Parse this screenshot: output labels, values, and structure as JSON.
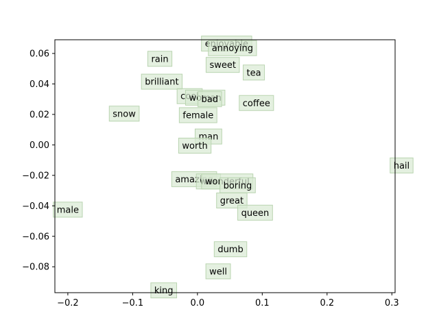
{
  "chart_data": {
    "type": "scatter",
    "title": "",
    "xlabel": "",
    "ylabel": "",
    "xlim": [
      -0.22,
      0.305
    ],
    "ylim": [
      -0.097,
      0.069
    ],
    "xticks": [
      -0.2,
      -0.1,
      0.0,
      0.1,
      0.2,
      0.3
    ],
    "yticks": [
      -0.08,
      -0.06,
      -0.04,
      -0.02,
      0.0,
      0.02,
      0.04,
      0.06
    ],
    "xtick_labels": [
      "−0.2",
      "−0.1",
      "0.0",
      "0.1",
      "0.2",
      "0.3"
    ],
    "ytick_labels": [
      "−0.08",
      "−0.06",
      "−0.04",
      "−0.02",
      "0.00",
      "0.02",
      "0.04",
      "0.06"
    ],
    "grid": false,
    "points": [
      {
        "label": "enjoyable",
        "x": 0.045,
        "y": 0.0665
      },
      {
        "label": "annoying",
        "x": 0.054,
        "y": 0.0635
      },
      {
        "label": "rain",
        "x": -0.058,
        "y": 0.0565
      },
      {
        "label": "sweet",
        "x": 0.039,
        "y": 0.0525
      },
      {
        "label": "tea",
        "x": 0.087,
        "y": 0.0475
      },
      {
        "label": "brilliant",
        "x": -0.055,
        "y": 0.0415
      },
      {
        "label": "cool",
        "x": -0.012,
        "y": 0.032
      },
      {
        "label": "woman",
        "x": 0.012,
        "y": 0.031
      },
      {
        "label": "bad",
        "x": 0.019,
        "y": 0.03
      },
      {
        "label": "coffee",
        "x": 0.091,
        "y": 0.0275
      },
      {
        "label": "snow",
        "x": -0.113,
        "y": 0.0205
      },
      {
        "label": "female",
        "x": 0.001,
        "y": 0.0195
      },
      {
        "label": "man",
        "x": 0.017,
        "y": 0.0055
      },
      {
        "label": "worth",
        "x": -0.004,
        "y": -0.0005
      },
      {
        "label": "hail",
        "x": 0.315,
        "y": -0.0135
      },
      {
        "label": "amazing",
        "x": -0.005,
        "y": -0.0225
      },
      {
        "label": "was",
        "x": 0.017,
        "y": -0.024
      },
      {
        "label": "wonderful",
        "x": 0.046,
        "y": -0.024
      },
      {
        "label": "boring",
        "x": 0.062,
        "y": -0.0265
      },
      {
        "label": "male",
        "x": -0.2,
        "y": -0.0425
      },
      {
        "label": "great",
        "x": 0.053,
        "y": -0.0365
      },
      {
        "label": "queen",
        "x": 0.089,
        "y": -0.0445
      },
      {
        "label": "dumb",
        "x": 0.051,
        "y": -0.0685
      },
      {
        "label": "well",
        "x": 0.032,
        "y": -0.083
      },
      {
        "label": "king",
        "x": -0.052,
        "y": -0.0955
      }
    ]
  }
}
